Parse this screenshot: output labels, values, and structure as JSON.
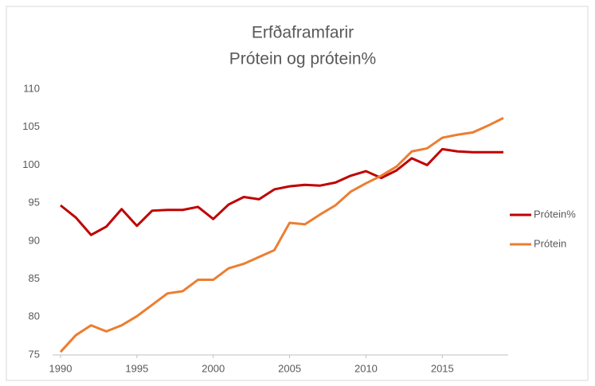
{
  "chart_data": {
    "type": "line",
    "title": "Erfðaframfarir",
    "subtitle": "Prótein og prótein%",
    "x": [
      1990,
      1991,
      1992,
      1993,
      1994,
      1995,
      1996,
      1997,
      1998,
      1999,
      2000,
      2001,
      2002,
      2003,
      2004,
      2005,
      2006,
      2007,
      2008,
      2009,
      2010,
      2011,
      2012,
      2013,
      2014,
      2015,
      2016,
      2017,
      2018,
      2019
    ],
    "series": [
      {
        "name": "Prótein%",
        "color": "#c00000",
        "values": [
          94.7,
          93.1,
          90.8,
          91.9,
          94.2,
          92.0,
          94.0,
          94.1,
          94.1,
          94.5,
          92.9,
          94.8,
          95.8,
          95.5,
          96.8,
          97.2,
          97.4,
          97.3,
          97.7,
          98.6,
          99.2,
          98.3,
          99.3,
          100.9,
          100.0,
          102.1,
          101.8,
          101.7,
          101.7,
          101.7
        ]
      },
      {
        "name": "Prótein",
        "color": "#ed7d31",
        "values": [
          75.4,
          77.6,
          78.9,
          78.1,
          78.9,
          80.1,
          81.6,
          83.1,
          83.4,
          84.9,
          84.9,
          86.4,
          87.0,
          87.9,
          88.8,
          92.4,
          92.2,
          93.5,
          94.7,
          96.5,
          97.6,
          98.6,
          99.8,
          101.8,
          102.2,
          103.6,
          104.0,
          104.3,
          105.2,
          106.2
        ]
      }
    ],
    "xlim": [
      1990,
      2019
    ],
    "xticks": [
      1990,
      1995,
      2000,
      2005,
      2010,
      2015
    ],
    "ylim": [
      75,
      110
    ],
    "yticks": [
      75,
      80,
      85,
      90,
      95,
      100,
      105,
      110
    ],
    "grid": false,
    "legend": "right"
  }
}
